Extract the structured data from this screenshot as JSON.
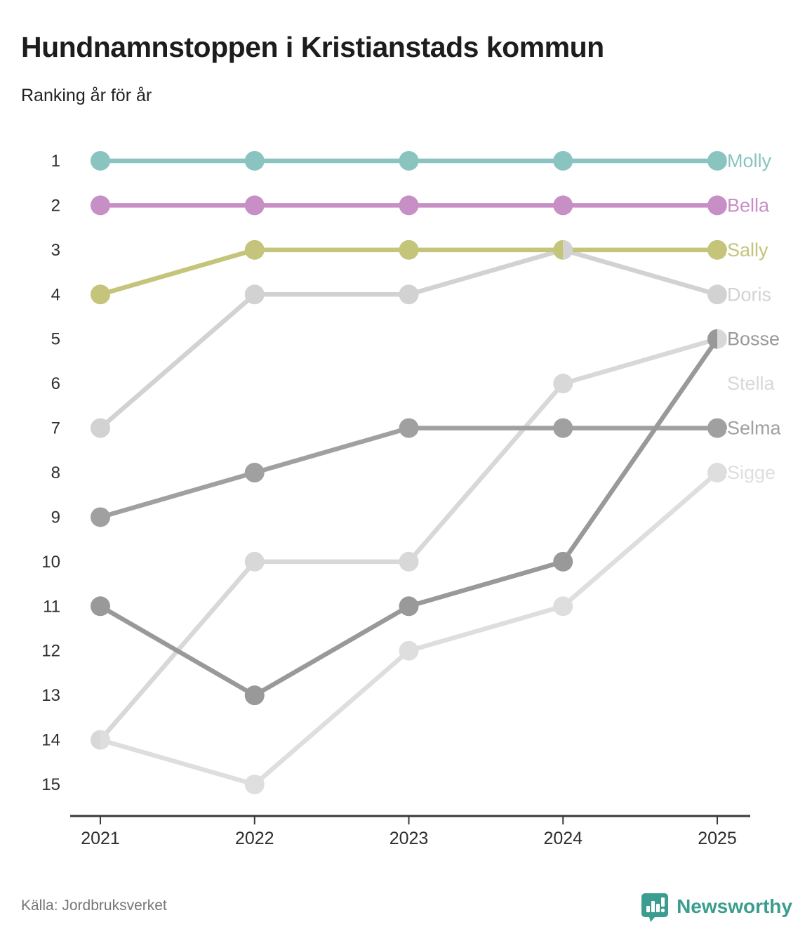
{
  "header": {
    "title": "Hundnamnstoppen i Kristianstads kommun",
    "subtitle": "Ranking år för år"
  },
  "chart_data": {
    "type": "line",
    "subtype": "bump-ranking",
    "title": "Hundnamnstoppen i Kristianstads kommun",
    "subtitle": "Ranking år för år",
    "x": [
      "2021",
      "2022",
      "2023",
      "2024",
      "2025"
    ],
    "y_ticks": [
      "1",
      "2",
      "3",
      "4",
      "5",
      "6",
      "7",
      "8",
      "9",
      "10",
      "11",
      "12",
      "13",
      "14",
      "15"
    ],
    "ylim": [
      1,
      15
    ],
    "y_inverted": true,
    "grid": false,
    "legend_position": "right-end-labels",
    "series": [
      {
        "name": "Molly",
        "color": "#89c4c1",
        "rankings": [
          1,
          1,
          1,
          1,
          1
        ],
        "label_rank": 1
      },
      {
        "name": "Bella",
        "color": "#c78fc6",
        "rankings": [
          2,
          2,
          2,
          2,
          2
        ],
        "label_rank": 2
      },
      {
        "name": "Sally",
        "color": "#c4c47a",
        "rankings": [
          4,
          3,
          3,
          3,
          3
        ],
        "label_rank": 3
      },
      {
        "name": "Doris",
        "color": "#d2d2d2",
        "rankings": [
          7,
          4,
          4,
          3,
          4
        ],
        "label_rank": 4
      },
      {
        "name": "Bosse",
        "color": "#999999",
        "rankings": [
          11,
          13,
          11,
          10,
          5
        ],
        "label_rank": 5
      },
      {
        "name": "Stella",
        "color": "#d8d8d8",
        "rankings": [
          14,
          10,
          10,
          6,
          5
        ],
        "label_rank": 6
      },
      {
        "name": "Selma",
        "color": "#a0a0a0",
        "rankings": [
          9,
          8,
          7,
          7,
          7
        ],
        "label_rank": 7
      },
      {
        "name": "Sigge",
        "color": "#dedede",
        "rankings": [
          14,
          15,
          12,
          11,
          8
        ],
        "label_rank": 8
      }
    ],
    "draw_order": [
      "Sigge",
      "Stella",
      "Doris",
      "Selma",
      "Bosse",
      "Sally",
      "Bella",
      "Molly"
    ],
    "axis_color": "#3a3a3a",
    "tick_label_color": "#2e2e2e"
  },
  "footer": {
    "source": "Källa: Jordbruksverket",
    "brand": "Newsworthy",
    "brand_color": "#3b9d8f"
  }
}
